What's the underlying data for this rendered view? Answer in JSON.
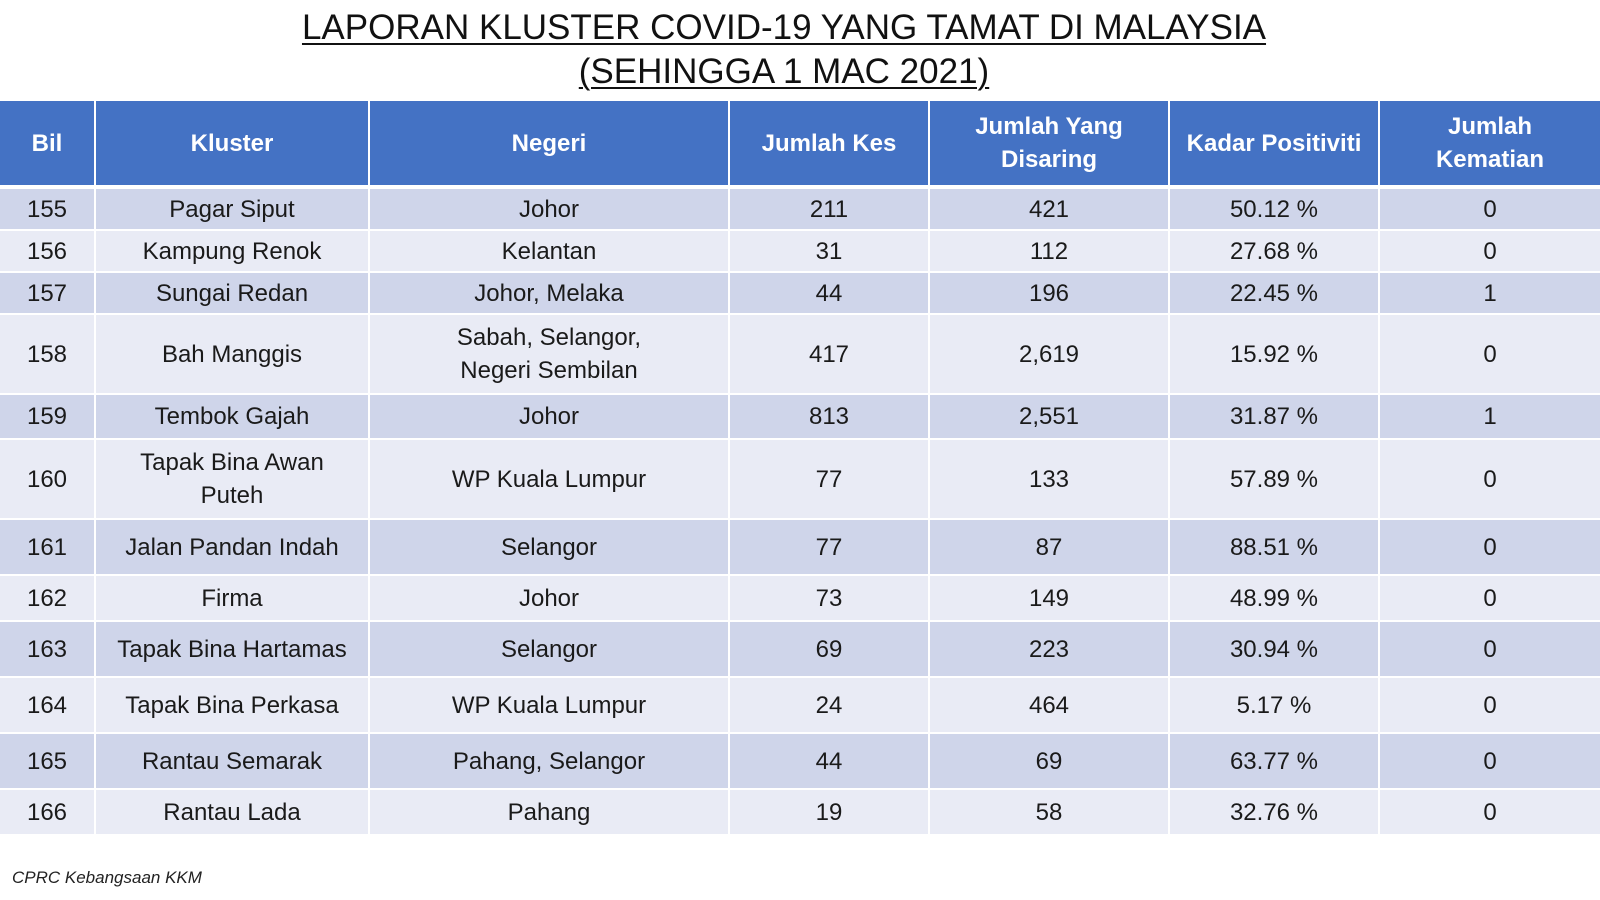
{
  "title": {
    "line1": "LAPORAN KLUSTER COVID-19 YANG TAMAT DI MALAYSIA",
    "line2": "(SEHINGGA  1 MAC 2021)"
  },
  "table": {
    "headers": {
      "bil": "Bil",
      "kluster": "Kluster",
      "negeri": "Negeri",
      "jumlah_kes": "Jumlah Kes",
      "jumlah_disaring_1": "Jumlah Yang",
      "jumlah_disaring_2": "Disaring",
      "kadar_positiviti": "Kadar Positiviti",
      "jumlah_kematian_1": "Jumlah",
      "jumlah_kematian_2": "Kematian"
    },
    "rows": [
      {
        "bil": "155",
        "kluster_1": "Pagar Siput",
        "kluster_2": "",
        "negeri_1": "Johor",
        "negeri_2": "",
        "kes": "211",
        "disaring": "421",
        "kadar": "50.12 %",
        "kematian": "0"
      },
      {
        "bil": "156",
        "kluster_1": "Kampung Renok",
        "kluster_2": "",
        "negeri_1": "Kelantan",
        "negeri_2": "",
        "kes": "31",
        "disaring": "112",
        "kadar": "27.68 %",
        "kematian": "0"
      },
      {
        "bil": "157",
        "kluster_1": "Sungai Redan",
        "kluster_2": "",
        "negeri_1": "Johor, Melaka",
        "negeri_2": "",
        "kes": "44",
        "disaring": "196",
        "kadar": "22.45 %",
        "kematian": "1"
      },
      {
        "bil": "158",
        "kluster_1": "Bah Manggis",
        "kluster_2": "",
        "negeri_1": "Sabah, Selangor,",
        "negeri_2": "Negeri Sembilan",
        "kes": "417",
        "disaring": "2,619",
        "kadar": "15.92 %",
        "kematian": "0"
      },
      {
        "bil": "159",
        "kluster_1": "Tembok Gajah",
        "kluster_2": "",
        "negeri_1": "Johor",
        "negeri_2": "",
        "kes": "813",
        "disaring": "2,551",
        "kadar": "31.87 %",
        "kematian": "1"
      },
      {
        "bil": "160",
        "kluster_1": "Tapak Bina Awan",
        "kluster_2": "Puteh",
        "negeri_1": "WP Kuala Lumpur",
        "negeri_2": "",
        "kes": "77",
        "disaring": "133",
        "kadar": "57.89 %",
        "kematian": "0"
      },
      {
        "bil": "161",
        "kluster_1": "Jalan Pandan Indah",
        "kluster_2": "",
        "negeri_1": "Selangor",
        "negeri_2": "",
        "kes": "77",
        "disaring": "87",
        "kadar": "88.51 %",
        "kematian": "0"
      },
      {
        "bil": "162",
        "kluster_1": "Firma",
        "kluster_2": "",
        "negeri_1": "Johor",
        "negeri_2": "",
        "kes": "73",
        "disaring": "149",
        "kadar": "48.99 %",
        "kematian": "0"
      },
      {
        "bil": "163",
        "kluster_1": "Tapak Bina Hartamas",
        "kluster_2": "",
        "negeri_1": "Selangor",
        "negeri_2": "",
        "kes": "69",
        "disaring": "223",
        "kadar": "30.94 %",
        "kematian": "0"
      },
      {
        "bil": "164",
        "kluster_1": "Tapak Bina Perkasa",
        "kluster_2": "",
        "negeri_1": "WP Kuala Lumpur",
        "negeri_2": "",
        "kes": "24",
        "disaring": "464",
        "kadar": "5.17 %",
        "kematian": "0"
      },
      {
        "bil": "165",
        "kluster_1": "Rantau Semarak",
        "kluster_2": "",
        "negeri_1": "Pahang, Selangor",
        "negeri_2": "",
        "kes": "44",
        "disaring": "69",
        "kadar": "63.77 %",
        "kematian": "0"
      },
      {
        "bil": "166",
        "kluster_1": "Rantau Lada",
        "kluster_2": "",
        "negeri_1": "Pahang",
        "negeri_2": "",
        "kes": "19",
        "disaring": "58",
        "kadar": "32.76 %",
        "kematian": "0"
      }
    ]
  },
  "footer": {
    "source": "CPRC Kebangsaan KKM"
  }
}
